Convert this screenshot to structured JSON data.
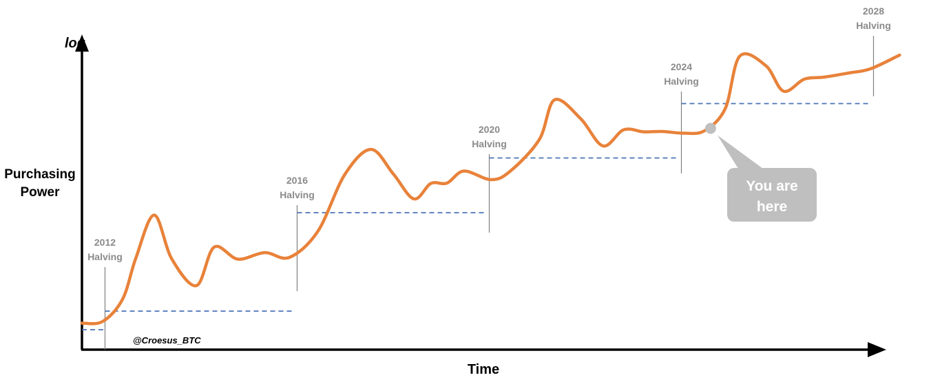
{
  "chart_data": {
    "type": "line",
    "ylabel_top": "log",
    "ylabel": [
      "Purchasing",
      "Power"
    ],
    "xlabel": "Time",
    "credit": "@Croesus_BTC",
    "colors": {
      "curve": "#E8823A",
      "dashed": "#4A72B8",
      "marker": "#BFBFBF",
      "bubble": "#BFBFBF",
      "axis": "#000000",
      "halving_line": "#7F7F7F"
    },
    "halvings": [
      {
        "year": "2012",
        "word": "Halving",
        "time": 0.03,
        "level": 0.52
      },
      {
        "year": "2016",
        "word": "Halving",
        "time": 0.28,
        "level": 3.38
      },
      {
        "year": "2020",
        "word": "Halving",
        "time": 0.53,
        "level": 4.97
      },
      {
        "year": "2024",
        "word": "Halving",
        "time": 0.78,
        "level": 6.55
      },
      {
        "year": "2028",
        "word": "Halving",
        "time": 1.03,
        "level": null
      }
    ],
    "series": [
      {
        "values": [
          [
            0.0,
            0.17
          ],
          [
            0.027,
            0.22
          ],
          [
            0.053,
            0.87
          ],
          [
            0.07,
            2.05
          ],
          [
            0.094,
            3.31
          ],
          [
            0.117,
            2.03
          ],
          [
            0.149,
            1.26
          ],
          [
            0.172,
            2.38
          ],
          [
            0.203,
            2.03
          ],
          [
            0.238,
            2.22
          ],
          [
            0.27,
            2.08
          ],
          [
            0.307,
            2.84
          ],
          [
            0.342,
            4.49
          ],
          [
            0.376,
            5.22
          ],
          [
            0.405,
            4.51
          ],
          [
            0.432,
            3.78
          ],
          [
            0.454,
            4.23
          ],
          [
            0.475,
            4.24
          ],
          [
            0.497,
            4.59
          ],
          [
            0.532,
            4.34
          ],
          [
            0.557,
            4.58
          ],
          [
            0.595,
            5.5
          ],
          [
            0.615,
            6.66
          ],
          [
            0.649,
            6.11
          ],
          [
            0.678,
            5.32
          ],
          [
            0.705,
            5.79
          ],
          [
            0.731,
            5.73
          ],
          [
            0.755,
            5.74
          ],
          [
            0.784,
            5.69
          ],
          [
            0.81,
            5.76
          ],
          [
            0.837,
            6.4
          ],
          [
            0.856,
            7.93
          ],
          [
            0.89,
            7.65
          ],
          [
            0.913,
            6.91
          ],
          [
            0.94,
            7.26
          ],
          [
            0.966,
            7.32
          ],
          [
            0.998,
            7.44
          ],
          [
            1.026,
            7.56
          ],
          [
            1.064,
            7.96
          ]
        ]
      }
    ],
    "you_are_here": {
      "time": 0.818,
      "level": 5.83,
      "label_lines": [
        "You are",
        "here"
      ]
    }
  }
}
